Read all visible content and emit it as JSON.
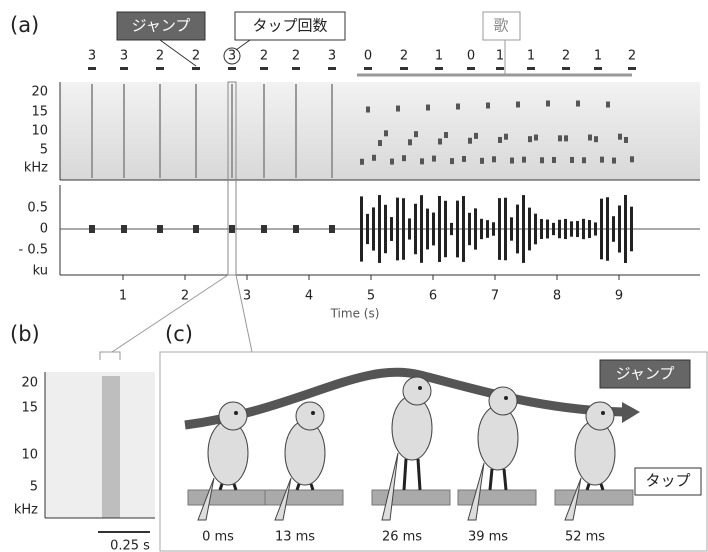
{
  "panel_a": {
    "label": "(a)",
    "jump_label": "ジャンプ",
    "tap_count_label": "タップ回数",
    "song_label": "歌",
    "tap_counts": [
      "3",
      "3",
      "2",
      "2",
      "3",
      "2",
      "2",
      "3",
      "0",
      "2",
      "1",
      "0",
      "1",
      "1",
      "2",
      "1",
      "2"
    ],
    "spectrogram_ticks": [
      "20",
      "15",
      "10",
      "5"
    ],
    "spectrogram_unit": "kHz",
    "waveform_ticks": [
      "0.5",
      "0",
      "- 0.5"
    ],
    "waveform_unit": "ku",
    "time_ticks": [
      "1",
      "2",
      "3",
      "4",
      "5",
      "6",
      "7",
      "8",
      "9"
    ],
    "time_label": "Time (s)"
  },
  "panel_b": {
    "label": "(b)",
    "ticks": [
      "20",
      "15",
      "10",
      "5"
    ],
    "unit": "kHz",
    "scale_label": "0.25 s"
  },
  "panel_c": {
    "label": "(c)",
    "jump_label": "ジャンプ",
    "tap_label": "タップ",
    "times": [
      "0 ms",
      "13 ms",
      "26 ms",
      "39 ms",
      "52 ms"
    ]
  }
}
